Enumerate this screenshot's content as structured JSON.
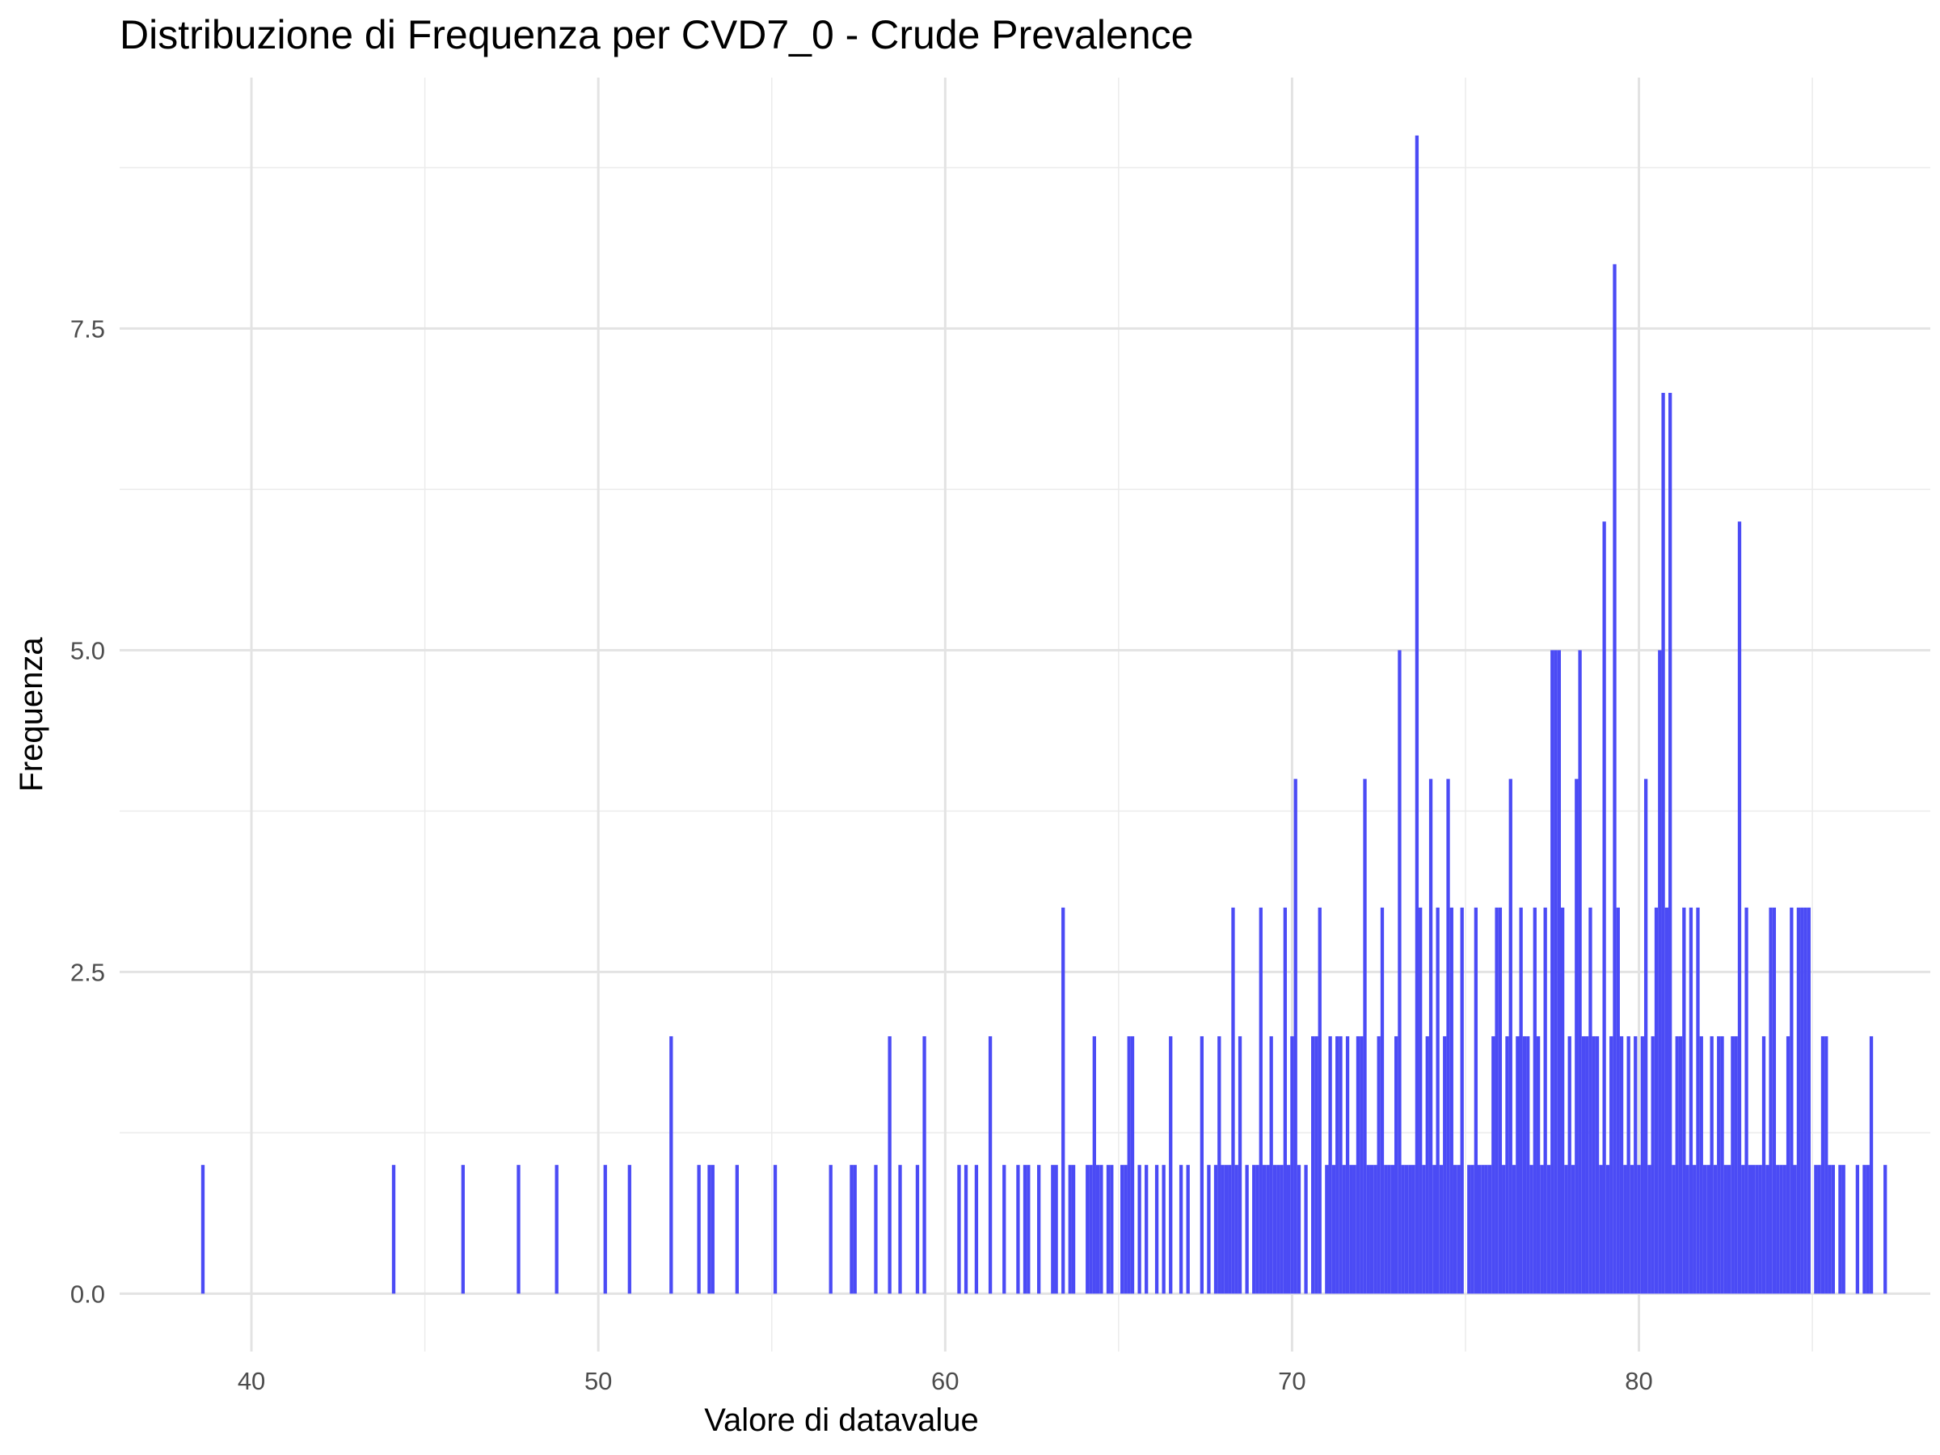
{
  "chart_data": {
    "type": "bar",
    "title": "Distribuzione di Frequenza per CVD7_0 - Crude Prevalence",
    "xlabel": "Valore di datavalue",
    "ylabel": "Frequenza",
    "xlim": [
      36.2,
      88.4
    ],
    "ylim": [
      -0.45,
      9.45
    ],
    "x_ticks": [
      40,
      50,
      60,
      70,
      80
    ],
    "y_ticks": [
      0.0,
      2.5,
      5.0,
      7.5
    ],
    "x_tick_labels": [
      "40",
      "50",
      "60",
      "70",
      "80"
    ],
    "y_tick_labels": [
      "0.0",
      "2.5",
      "5.0",
      "7.5"
    ],
    "grid": true,
    "bar_color": "#4B4BF5",
    "bin_width": 0.1,
    "bars": [
      [
        38.6,
        1
      ],
      [
        44.1,
        1
      ],
      [
        46.1,
        1
      ],
      [
        47.7,
        1
      ],
      [
        48.8,
        1
      ],
      [
        50.2,
        1
      ],
      [
        50.9,
        1
      ],
      [
        52.1,
        2
      ],
      [
        52.9,
        1
      ],
      [
        53.2,
        1
      ],
      [
        53.3,
        1
      ],
      [
        54.0,
        1
      ],
      [
        55.1,
        1
      ],
      [
        56.7,
        1
      ],
      [
        57.3,
        1
      ],
      [
        57.4,
        1
      ],
      [
        58.0,
        1
      ],
      [
        58.4,
        2
      ],
      [
        58.7,
        1
      ],
      [
        59.2,
        1
      ],
      [
        59.4,
        2
      ],
      [
        60.4,
        1
      ],
      [
        60.6,
        1
      ],
      [
        60.9,
        1
      ],
      [
        61.3,
        2
      ],
      [
        61.7,
        1
      ],
      [
        62.1,
        1
      ],
      [
        62.3,
        1
      ],
      [
        62.4,
        1
      ],
      [
        62.7,
        1
      ],
      [
        63.1,
        1
      ],
      [
        63.2,
        1
      ],
      [
        63.4,
        3
      ],
      [
        63.6,
        1
      ],
      [
        63.7,
        1
      ],
      [
        64.1,
        1
      ],
      [
        64.2,
        1
      ],
      [
        64.3,
        2
      ],
      [
        64.4,
        1
      ],
      [
        64.5,
        1
      ],
      [
        64.7,
        1
      ],
      [
        64.8,
        1
      ],
      [
        65.1,
        1
      ],
      [
        65.2,
        1
      ],
      [
        65.3,
        2
      ],
      [
        65.4,
        2
      ],
      [
        65.6,
        1
      ],
      [
        65.8,
        1
      ],
      [
        66.1,
        1
      ],
      [
        66.3,
        1
      ],
      [
        66.5,
        2
      ],
      [
        66.8,
        1
      ],
      [
        67.0,
        1
      ],
      [
        67.4,
        2
      ],
      [
        67.6,
        1
      ],
      [
        67.8,
        1
      ],
      [
        67.9,
        2
      ],
      [
        68.0,
        1
      ],
      [
        68.1,
        1
      ],
      [
        68.2,
        1
      ],
      [
        68.3,
        3
      ],
      [
        68.4,
        1
      ],
      [
        68.5,
        2
      ],
      [
        68.7,
        1
      ],
      [
        68.9,
        1
      ],
      [
        69.0,
        1
      ],
      [
        69.1,
        3
      ],
      [
        69.2,
        1
      ],
      [
        69.3,
        1
      ],
      [
        69.4,
        2
      ],
      [
        69.5,
        1
      ],
      [
        69.6,
        1
      ],
      [
        69.7,
        1
      ],
      [
        69.8,
        3
      ],
      [
        69.9,
        1
      ],
      [
        70.0,
        2
      ],
      [
        70.1,
        4
      ],
      [
        70.2,
        1
      ],
      [
        70.4,
        1
      ],
      [
        70.6,
        2
      ],
      [
        70.7,
        2
      ],
      [
        70.8,
        3
      ],
      [
        71.0,
        1
      ],
      [
        71.1,
        2
      ],
      [
        71.2,
        1
      ],
      [
        71.3,
        2
      ],
      [
        71.4,
        2
      ],
      [
        71.5,
        1
      ],
      [
        71.6,
        2
      ],
      [
        71.7,
        1
      ],
      [
        71.8,
        1
      ],
      [
        71.9,
        2
      ],
      [
        72.0,
        2
      ],
      [
        72.1,
        4
      ],
      [
        72.2,
        1
      ],
      [
        72.3,
        1
      ],
      [
        72.4,
        1
      ],
      [
        72.5,
        2
      ],
      [
        72.6,
        3
      ],
      [
        72.7,
        1
      ],
      [
        72.8,
        1
      ],
      [
        72.9,
        1
      ],
      [
        73.0,
        2
      ],
      [
        73.1,
        5
      ],
      [
        73.2,
        1
      ],
      [
        73.3,
        1
      ],
      [
        73.4,
        1
      ],
      [
        73.5,
        1
      ],
      [
        73.6,
        9
      ],
      [
        73.7,
        3
      ],
      [
        73.8,
        1
      ],
      [
        73.9,
        2
      ],
      [
        74.0,
        4
      ],
      [
        74.1,
        1
      ],
      [
        74.2,
        3
      ],
      [
        74.3,
        1
      ],
      [
        74.4,
        2
      ],
      [
        74.5,
        4
      ],
      [
        74.6,
        3
      ],
      [
        74.7,
        1
      ],
      [
        74.8,
        1
      ],
      [
        74.9,
        3
      ],
      [
        75.1,
        1
      ],
      [
        75.2,
        1
      ],
      [
        75.3,
        3
      ],
      [
        75.4,
        1
      ],
      [
        75.5,
        1
      ],
      [
        75.6,
        1
      ],
      [
        75.7,
        1
      ],
      [
        75.8,
        2
      ],
      [
        75.9,
        3
      ],
      [
        76.0,
        3
      ],
      [
        76.1,
        1
      ],
      [
        76.2,
        2
      ],
      [
        76.3,
        4
      ],
      [
        76.4,
        1
      ],
      [
        76.5,
        2
      ],
      [
        76.6,
        3
      ],
      [
        76.7,
        2
      ],
      [
        76.8,
        2
      ],
      [
        76.9,
        1
      ],
      [
        77.0,
        3
      ],
      [
        77.1,
        2
      ],
      [
        77.2,
        1
      ],
      [
        77.3,
        3
      ],
      [
        77.4,
        1
      ],
      [
        77.5,
        5
      ],
      [
        77.6,
        5
      ],
      [
        77.7,
        5
      ],
      [
        77.8,
        3
      ],
      [
        77.9,
        1
      ],
      [
        78.0,
        2
      ],
      [
        78.1,
        1
      ],
      [
        78.2,
        4
      ],
      [
        78.3,
        5
      ],
      [
        78.4,
        2
      ],
      [
        78.5,
        2
      ],
      [
        78.6,
        3
      ],
      [
        78.7,
        2
      ],
      [
        78.8,
        2
      ],
      [
        78.9,
        1
      ],
      [
        79.0,
        6
      ],
      [
        79.1,
        1
      ],
      [
        79.2,
        2
      ],
      [
        79.3,
        8
      ],
      [
        79.4,
        3
      ],
      [
        79.5,
        2
      ],
      [
        79.6,
        1
      ],
      [
        79.7,
        2
      ],
      [
        79.8,
        1
      ],
      [
        79.9,
        2
      ],
      [
        80.0,
        1
      ],
      [
        80.1,
        2
      ],
      [
        80.2,
        4
      ],
      [
        80.3,
        1
      ],
      [
        80.4,
        2
      ],
      [
        80.5,
        3
      ],
      [
        80.6,
        5
      ],
      [
        80.7,
        7
      ],
      [
        80.8,
        3
      ],
      [
        80.9,
        7
      ],
      [
        81.0,
        1
      ],
      [
        81.1,
        2
      ],
      [
        81.2,
        2
      ],
      [
        81.3,
        3
      ],
      [
        81.4,
        1
      ],
      [
        81.5,
        3
      ],
      [
        81.6,
        1
      ],
      [
        81.7,
        3
      ],
      [
        81.8,
        2
      ],
      [
        81.9,
        1
      ],
      [
        82.0,
        1
      ],
      [
        82.1,
        2
      ],
      [
        82.2,
        1
      ],
      [
        82.3,
        2
      ],
      [
        82.4,
        2
      ],
      [
        82.5,
        1
      ],
      [
        82.6,
        1
      ],
      [
        82.7,
        2
      ],
      [
        82.8,
        2
      ],
      [
        82.9,
        6
      ],
      [
        83.0,
        1
      ],
      [
        83.1,
        3
      ],
      [
        83.2,
        1
      ],
      [
        83.3,
        1
      ],
      [
        83.4,
        1
      ],
      [
        83.5,
        1
      ],
      [
        83.6,
        2
      ],
      [
        83.7,
        1
      ],
      [
        83.8,
        3
      ],
      [
        83.9,
        3
      ],
      [
        84.0,
        1
      ],
      [
        84.1,
        1
      ],
      [
        84.2,
        1
      ],
      [
        84.3,
        2
      ],
      [
        84.4,
        3
      ],
      [
        84.5,
        1
      ],
      [
        84.6,
        3
      ],
      [
        84.7,
        3
      ],
      [
        84.8,
        3
      ],
      [
        84.9,
        3
      ],
      [
        85.1,
        1
      ],
      [
        85.2,
        1
      ],
      [
        85.3,
        2
      ],
      [
        85.4,
        2
      ],
      [
        85.5,
        1
      ],
      [
        85.6,
        1
      ],
      [
        85.8,
        1
      ],
      [
        85.9,
        1
      ],
      [
        86.3,
        1
      ],
      [
        86.5,
        1
      ],
      [
        86.6,
        1
      ],
      [
        86.7,
        2
      ],
      [
        87.1,
        1
      ]
    ]
  }
}
